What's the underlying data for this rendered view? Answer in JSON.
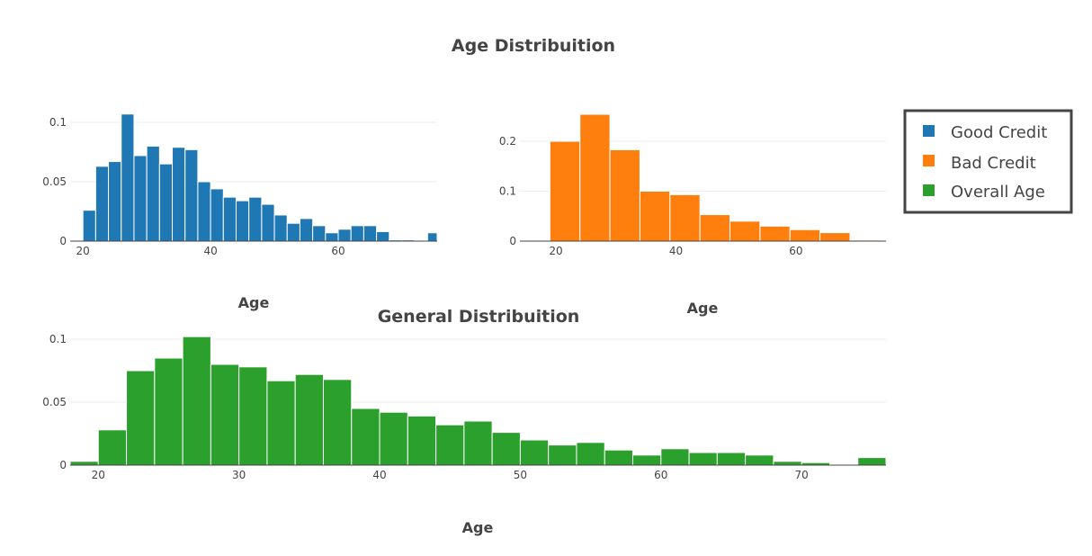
{
  "chart_data": [
    {
      "type": "bar",
      "title": "Age Distribuition",
      "xlabel": "Age",
      "ylabel": "",
      "xlim": [
        18,
        75.5
      ],
      "ylim": [
        0,
        0.1
      ],
      "xticks": [
        20,
        40,
        60
      ],
      "yticks": [
        0,
        0.05,
        0.1
      ],
      "ytick_labels": [
        "0",
        "0.05",
        "0.1"
      ],
      "bin_width": 2,
      "series": [
        {
          "name": "Good Credit",
          "color": "#1f77b4",
          "bin_starts": [
            18,
            20,
            22,
            24,
            26,
            28,
            30,
            32,
            34,
            36,
            38,
            40,
            42,
            44,
            46,
            48,
            50,
            52,
            54,
            56,
            58,
            60,
            62,
            64,
            66,
            68,
            70,
            72,
            74
          ],
          "values": [
            0,
            0.026,
            0.063,
            0.067,
            0.107,
            0.072,
            0.08,
            0.065,
            0.079,
            0.077,
            0.05,
            0.044,
            0.037,
            0.034,
            0.037,
            0.031,
            0.022,
            0.015,
            0.019,
            0.013,
            0.007,
            0.01,
            0.013,
            0.013,
            0.008,
            0.001,
            0.001,
            0,
            0.007
          ]
        }
      ]
    },
    {
      "type": "bar",
      "title": "",
      "xlabel": "Age",
      "ylabel": "",
      "xlim": [
        14,
        75
      ],
      "ylim": [
        0,
        0.25
      ],
      "xticks": [
        20,
        40,
        60
      ],
      "yticks": [
        0,
        0.1,
        0.2
      ],
      "ytick_labels": [
        "0",
        "0.1",
        "0.2"
      ],
      "bin_width": 5,
      "series": [
        {
          "name": "Bad Credit",
          "color": "#ff7f0e",
          "bin_starts": [
            14,
            19,
            24,
            29,
            34,
            39,
            44,
            49,
            54,
            59,
            64,
            69
          ],
          "values": [
            0.001,
            0.2,
            0.254,
            0.183,
            0.1,
            0.093,
            0.053,
            0.04,
            0.03,
            0.023,
            0.017,
            0.002
          ]
        }
      ]
    },
    {
      "type": "bar",
      "title": "General Distribuition",
      "xlabel": "Age",
      "ylabel": "",
      "xlim": [
        18,
        76
      ],
      "ylim": [
        0,
        0.1
      ],
      "xticks": [
        20,
        30,
        40,
        50,
        60,
        70
      ],
      "yticks": [
        0,
        0.05,
        0.1
      ],
      "ytick_labels": [
        "0",
        "0.05",
        "0.1"
      ],
      "bin_width": 2,
      "series": [
        {
          "name": "Overall Age",
          "color": "#2ca02c",
          "bin_starts": [
            18,
            20,
            22,
            24,
            26,
            28,
            30,
            32,
            34,
            36,
            38,
            40,
            42,
            44,
            46,
            48,
            50,
            52,
            54,
            56,
            58,
            60,
            62,
            64,
            66,
            68,
            70,
            72,
            74
          ],
          "values": [
            0.003,
            0.028,
            0.075,
            0.085,
            0.102,
            0.08,
            0.078,
            0.067,
            0.072,
            0.068,
            0.045,
            0.042,
            0.039,
            0.032,
            0.035,
            0.026,
            0.02,
            0.016,
            0.018,
            0.012,
            0.008,
            0.013,
            0.01,
            0.01,
            0.008,
            0.003,
            0.002,
            0,
            0.006
          ]
        }
      ]
    }
  ],
  "legend": {
    "placement": "top-right",
    "items": [
      {
        "label": "Good Credit",
        "color": "#1f77b4"
      },
      {
        "label": "Bad Credit",
        "color": "#ff7f0e"
      },
      {
        "label": "Overall Age",
        "color": "#2ca02c"
      }
    ]
  }
}
